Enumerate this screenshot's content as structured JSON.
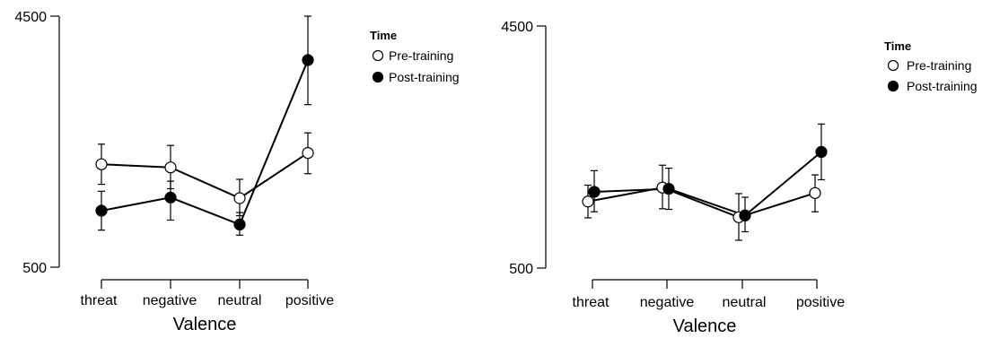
{
  "chart_data": [
    {
      "type": "line",
      "xlabel": "Valence",
      "ylabel": "",
      "categories": [
        "threat",
        "negative",
        "neutral",
        "positive"
      ],
      "ylim": [
        500,
        4500
      ],
      "yticks": [
        "500",
        "4500"
      ],
      "legend": {
        "title": "Time",
        "placement": "top-right"
      },
      "series": [
        {
          "name": "Pre-training",
          "marker": "open-circle",
          "color": "#ffffff",
          "values": [
            2140,
            2090,
            1600,
            2320
          ],
          "err_low": [
            1820,
            1750,
            1320,
            1990
          ],
          "err_high": [
            2460,
            2440,
            1900,
            2640
          ]
        },
        {
          "name": "Post-training",
          "marker": "filled-circle",
          "color": "#000000",
          "values": [
            1400,
            1610,
            1180,
            3800
          ],
          "err_low": [
            1090,
            1250,
            1010,
            3090
          ],
          "err_high": [
            1710,
            1870,
            1370,
            4500
          ]
        }
      ]
    },
    {
      "type": "line",
      "xlabel": "Valence",
      "ylabel": "",
      "categories": [
        "threat",
        "negative",
        "neutral",
        "positive"
      ],
      "ylim": [
        500,
        4500
      ],
      "yticks": [
        "500",
        "4500"
      ],
      "legend": {
        "title": "Time",
        "placement": "top-right"
      },
      "series": [
        {
          "name": "Pre-training",
          "marker": "open-circle",
          "color": "#ffffff",
          "values": [
            1600,
            1830,
            1340,
            1740
          ],
          "err_low": [
            1330,
            1480,
            960,
            1430
          ],
          "err_high": [
            1870,
            2200,
            1730,
            2040
          ]
        },
        {
          "name": "Post-training",
          "marker": "filled-circle",
          "color": "#000000",
          "values": [
            1760,
            1810,
            1370,
            2420
          ],
          "err_low": [
            1430,
            1470,
            1100,
            1960
          ],
          "err_high": [
            2110,
            2150,
            1670,
            2880
          ]
        }
      ]
    }
  ]
}
